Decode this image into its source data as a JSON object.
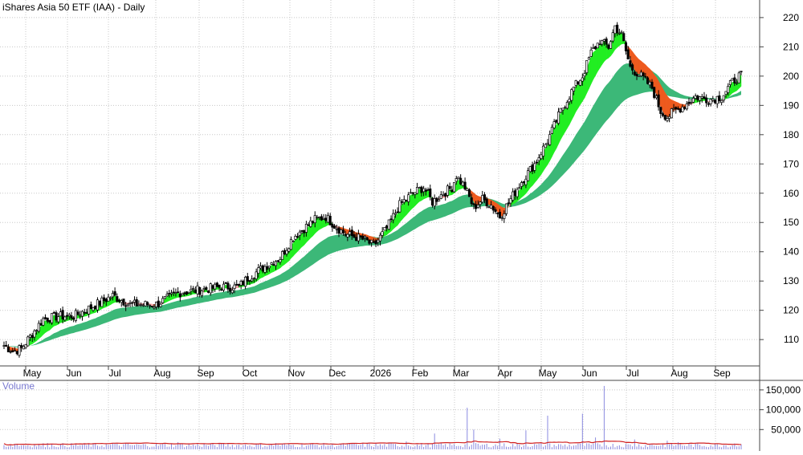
{
  "chart_data": [
    {
      "type": "candlestick",
      "title": "iShares Asia 50 ETF (IAA) - Daily",
      "x_labels": [
        "May",
        "Jun",
        "Jul",
        "Aug",
        "Sep",
        "Oct",
        "Nov",
        "Dec",
        "2026",
        "Feb",
        "Mar",
        "Apr",
        "May",
        "Jun",
        "Jul",
        "Aug",
        "Sep"
      ],
      "y_ticks": [
        110,
        120,
        130,
        140,
        150,
        160,
        170,
        180,
        190,
        200,
        210,
        220
      ],
      "ylim": [
        101,
        226
      ],
      "price_path": [
        [
          0,
          108
        ],
        [
          4,
          106
        ],
        [
          8,
          107
        ],
        [
          12,
          111
        ],
        [
          18,
          117
        ],
        [
          25,
          118
        ],
        [
          32,
          118
        ],
        [
          40,
          121
        ],
        [
          50,
          125
        ],
        [
          58,
          122
        ],
        [
          70,
          122
        ],
        [
          80,
          126
        ],
        [
          90,
          127
        ],
        [
          100,
          128
        ],
        [
          108,
          128
        ],
        [
          112,
          131
        ],
        [
          120,
          135
        ],
        [
          127,
          138
        ],
        [
          133,
          145
        ],
        [
          138,
          148
        ],
        [
          143,
          151
        ],
        [
          148,
          152
        ],
        [
          152,
          149
        ],
        [
          157,
          146
        ],
        [
          162,
          145
        ],
        [
          166,
          144
        ],
        [
          170,
          142
        ],
        [
          176,
          148
        ],
        [
          182,
          156
        ],
        [
          188,
          160
        ],
        [
          193,
          162
        ],
        [
          197,
          157
        ],
        [
          202,
          160
        ],
        [
          206,
          162
        ],
        [
          208,
          166
        ],
        [
          212,
          162
        ],
        [
          216,
          155
        ],
        [
          220,
          158
        ],
        [
          224,
          156
        ],
        [
          228,
          152
        ],
        [
          233,
          158
        ],
        [
          238,
          164
        ],
        [
          244,
          170
        ],
        [
          250,
          178
        ],
        [
          256,
          188
        ],
        [
          262,
          196
        ],
        [
          266,
          200
        ],
        [
          270,
          208
        ],
        [
          274,
          212
        ],
        [
          278,
          210
        ],
        [
          281,
          217
        ],
        [
          284,
          214
        ],
        [
          288,
          203
        ],
        [
          293,
          200
        ],
        [
          298,
          196
        ],
        [
          302,
          188
        ],
        [
          305,
          186
        ],
        [
          308,
          188
        ],
        [
          313,
          190
        ],
        [
          318,
          193
        ],
        [
          324,
          192
        ],
        [
          330,
          193
        ],
        [
          335,
          198
        ],
        [
          338,
          200
        ]
      ],
      "volume_ylim": [
        0,
        170000
      ],
      "volume_ticks": [
        50000,
        100000,
        150000
      ],
      "volume_spikes": [
        [
          5,
          14000
        ],
        [
          20,
          16000
        ],
        [
          50,
          15000
        ],
        [
          80,
          18000
        ],
        [
          100,
          14000
        ],
        [
          125,
          16000
        ],
        [
          160,
          15000
        ],
        [
          185,
          20000
        ],
        [
          198,
          40000
        ],
        [
          213,
          105000
        ],
        [
          216,
          50000
        ],
        [
          228,
          27000
        ],
        [
          240,
          48000
        ],
        [
          250,
          85000
        ],
        [
          266,
          90000
        ],
        [
          272,
          30000
        ],
        [
          276,
          160000
        ],
        [
          290,
          25000
        ],
        [
          305,
          22000
        ],
        [
          310,
          18000
        ],
        [
          336,
          15000
        ]
      ],
      "volume_avg": 20000,
      "colors": {
        "candle": "#000000",
        "grid": "#c8c8c8",
        "long_band": "#3cb878",
        "short_band_up": "#22ee22",
        "short_band_down": "#ee5a1e",
        "short_band_flat": "#f5a0a0",
        "volume_bar": "#8a8ae0",
        "volume_avg_line": "#d02020",
        "volume_label": "#7878d0",
        "axis": "#444444"
      }
    },
    {
      "type": "bar",
      "title": "Volume"
    }
  ]
}
